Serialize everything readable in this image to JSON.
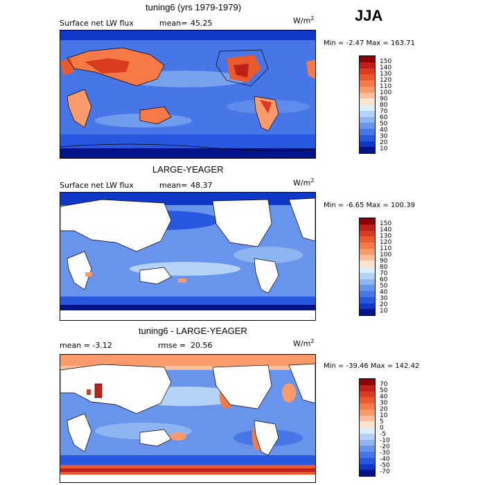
{
  "season": "JJA",
  "panels": [
    {
      "title": "tuning6 (yrs 1979-1979)",
      "left_label": "Surface net LW flux",
      "mean_label": "mean=",
      "mean_value": "45.25",
      "unit_base": "W/m",
      "unit_exp": "2",
      "minmax": "Min =   -2.47 Max = 163.71",
      "levels": [
        "150",
        "140",
        "130",
        "120",
        "110",
        "100",
        "90",
        "80",
        "70",
        "60",
        "50",
        "40",
        "30",
        "20",
        "10"
      ],
      "colors": [
        "#8b0000",
        "#c0201a",
        "#d93c1f",
        "#ea5a2c",
        "#f57a47",
        "#fb9a6b",
        "#fdbf98",
        "#fde3cf",
        "#ddeefb",
        "#b5d3f6",
        "#8db5f1",
        "#6994ec",
        "#4776e7",
        "#2858df",
        "#1038c8",
        "#03138a"
      ]
    },
    {
      "title": "LARGE-YEAGER",
      "left_label": "Surface net LW flux",
      "mean_label": "mean=",
      "mean_value": "48.37",
      "unit_base": "W/m",
      "unit_exp": "2",
      "minmax": "Min =   -6.65 Max = 100.39",
      "levels": [
        "150",
        "140",
        "130",
        "120",
        "110",
        "100",
        "90",
        "80",
        "70",
        "60",
        "50",
        "40",
        "30",
        "20",
        "10"
      ],
      "colors": [
        "#8b0000",
        "#c0201a",
        "#d93c1f",
        "#ea5a2c",
        "#f57a47",
        "#fb9a6b",
        "#fdbf98",
        "#fde3cf",
        "#ddeefb",
        "#b5d3f6",
        "#8db5f1",
        "#6994ec",
        "#4776e7",
        "#2858df",
        "#1038c8",
        "#03138a"
      ]
    },
    {
      "title": "tuning6 - LARGE-YEAGER",
      "left_label": "mean =   -3.12",
      "mean_label": "rmse =",
      "mean_value": "20.56",
      "unit_base": "W/m",
      "unit_exp": "2",
      "minmax": "Min = -39.46 Max = 142.42",
      "levels": [
        "70",
        "50",
        "40",
        "30",
        "20",
        "10",
        "5",
        "0",
        "-5",
        "-10",
        "-20",
        "-30",
        "-40",
        "-50",
        "-70"
      ],
      "colors": [
        "#8b0000",
        "#c0201a",
        "#d93c1f",
        "#ea5a2c",
        "#f57a47",
        "#fb9a6b",
        "#fdbf98",
        "#fde3cf",
        "#ddeefb",
        "#b5d3f6",
        "#8db5f1",
        "#6994ec",
        "#4776e7",
        "#2858df",
        "#1038c8",
        "#03138a"
      ]
    }
  ]
}
